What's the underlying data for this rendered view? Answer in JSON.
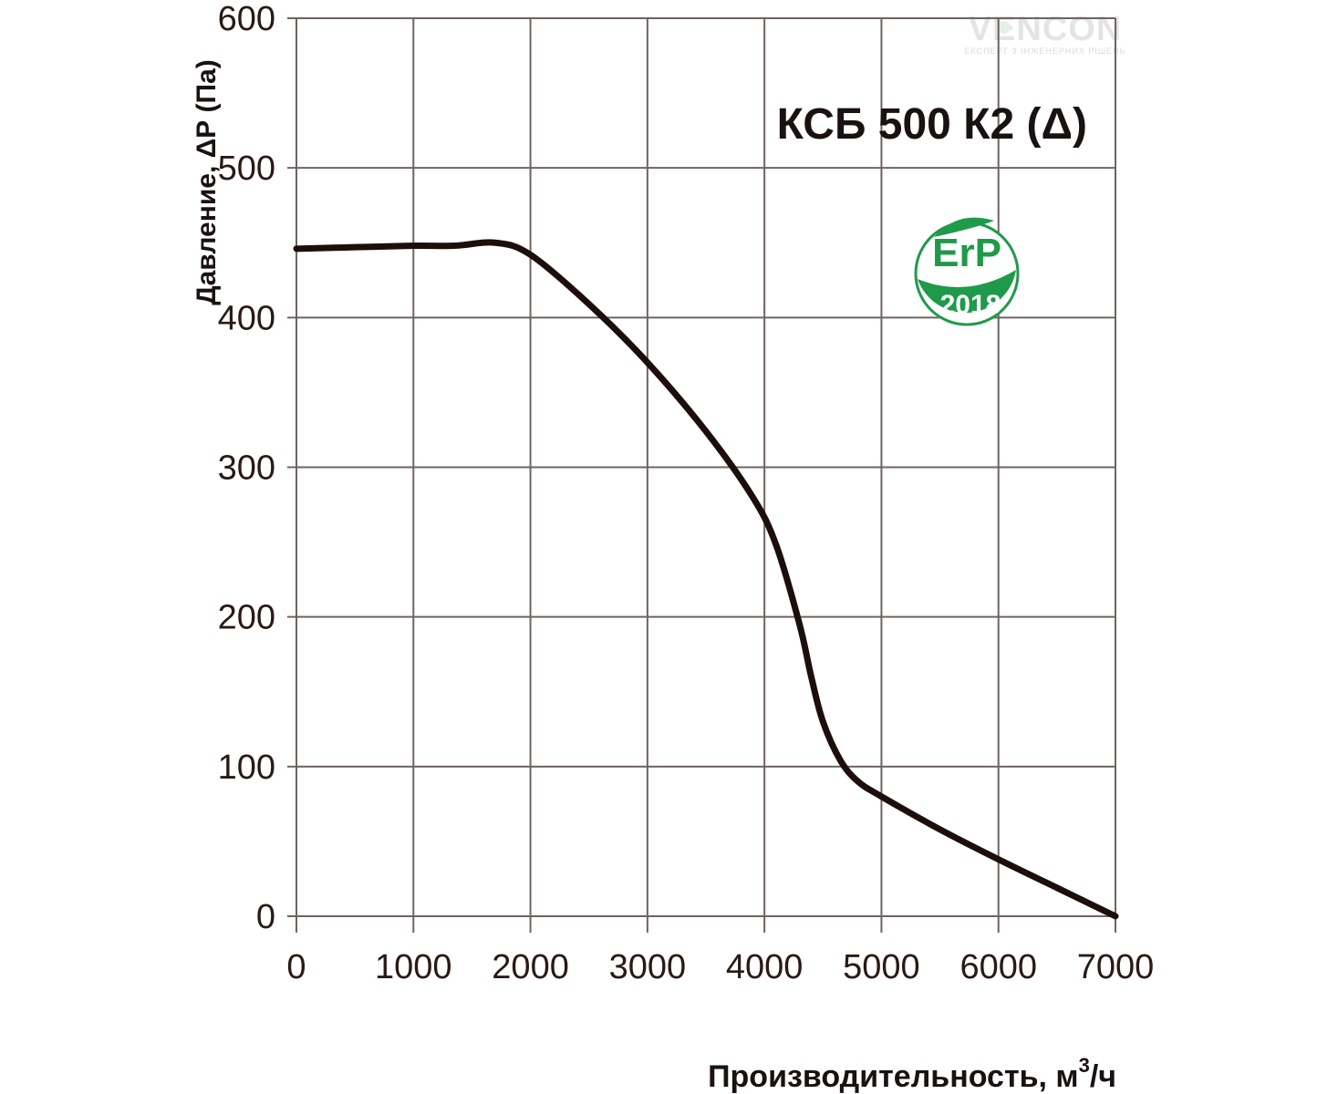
{
  "brand": {
    "name": "VENCON",
    "tagline": "ЕКСПЕРТ З ІНЖЕНЕРНИХ РІШЕНЬ"
  },
  "badge": {
    "label": "ErP",
    "year": "2018",
    "color": "#1f9a4a"
  },
  "chart_data": {
    "type": "line",
    "title": "КСБ 500 К2 (Δ)",
    "xlabel": "Производительность,  м³/ч",
    "xlabel_main": "Производительность,  м",
    "xlabel_sup": "3",
    "xlabel_tail": "/ч",
    "ylabel": "Давление,  ΔР (Па)",
    "xlim": [
      0,
      7000
    ],
    "ylim": [
      0,
      600
    ],
    "x_ticks": [
      "0",
      "1000",
      "2000",
      "3000",
      "4000",
      "5000",
      "6000",
      "7000"
    ],
    "y_ticks": [
      "0",
      "100",
      "200",
      "300",
      "400",
      "500",
      "600"
    ],
    "grid": true,
    "line_color": "#1c0f0b",
    "series": [
      {
        "name": "КСБ 500 К2 (Δ)",
        "x": [
          0,
          500,
          1000,
          1350,
          1700,
          2000,
          2500,
          3000,
          3500,
          3900,
          4100,
          4300,
          4400,
          4500,
          4650,
          4800,
          5000,
          5500,
          6000,
          6500,
          7000
        ],
        "y": [
          446,
          447,
          448,
          448,
          450,
          442,
          409,
          370,
          324,
          280,
          248,
          195,
          160,
          130,
          104,
          90,
          80,
          58,
          38,
          19,
          0
        ]
      }
    ]
  }
}
